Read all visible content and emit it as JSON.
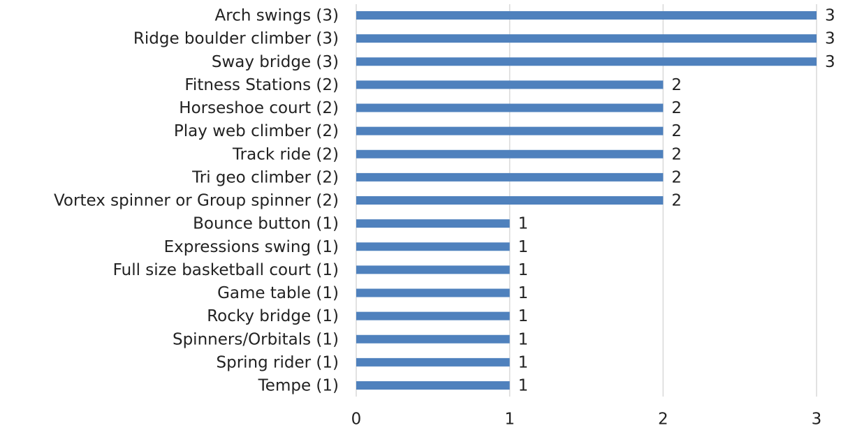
{
  "chart_data": {
    "type": "bar",
    "orientation": "horizontal",
    "categories": [
      "Arch swings (3)",
      "Ridge boulder climber (3)",
      "Sway bridge (3)",
      "Fitness Stations (2)",
      "Horseshoe court (2)",
      "Play web climber (2)",
      "Track ride (2)",
      "Tri geo climber (2)",
      "Vortex spinner or Group spinner (2)",
      "Bounce button (1)",
      "Expressions swing (1)",
      "Full size basketball court (1)",
      "Game table (1)",
      "Rocky bridge (1)",
      "Spinners/Orbitals (1)",
      "Spring rider (1)",
      "Tempe (1)"
    ],
    "values": [
      3,
      3,
      3,
      2,
      2,
      2,
      2,
      2,
      2,
      1,
      1,
      1,
      1,
      1,
      1,
      1,
      1
    ],
    "color": "#4f81bd",
    "xlim": [
      0,
      3
    ],
    "xticks": [
      0,
      1,
      2,
      3
    ],
    "grid": true
  }
}
